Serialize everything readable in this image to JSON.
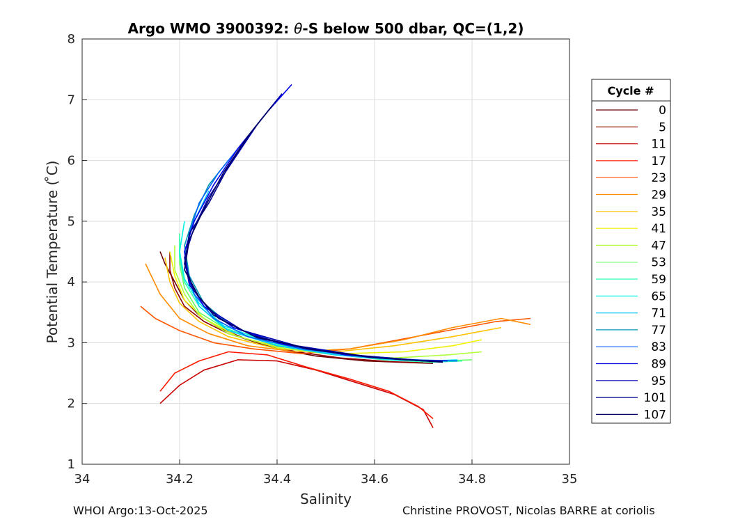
{
  "chart_data": {
    "type": "line",
    "title": "Argo WMO 3900392: θ-S below 500 dbar,  QC=(1,2)",
    "title_parts": {
      "prefix": "Argo WMO 3900392: ",
      "theta": "θ",
      "suffix": "-S below 500 dbar,  QC=(1,2)"
    },
    "xlabel": "Salinity",
    "ylabel": "Potential Temperature ( ̊C)",
    "xlim": [
      34,
      35
    ],
    "ylim": [
      1,
      8
    ],
    "xticks": [
      34,
      34.2,
      34.4,
      34.6,
      34.8,
      35
    ],
    "xtick_labels": [
      "34",
      "34.2",
      "34.4",
      "34.6",
      "34.8",
      "35"
    ],
    "yticks": [
      1,
      2,
      3,
      4,
      5,
      6,
      7,
      8
    ],
    "ytick_labels": [
      "1",
      "2",
      "3",
      "4",
      "5",
      "6",
      "7",
      "8"
    ],
    "grid": true,
    "legend": {
      "title": "Cycle #",
      "placement": "right-outside",
      "entries": [
        {
          "label": "0",
          "color": "#6b0000"
        },
        {
          "label": "5",
          "color": "#8e0000"
        },
        {
          "label": "11",
          "color": "#c80000"
        },
        {
          "label": "17",
          "color": "#ff1a00"
        },
        {
          "label": "23",
          "color": "#ff5500"
        },
        {
          "label": "29",
          "color": "#ff8c00"
        },
        {
          "label": "35",
          "color": "#ffc200"
        },
        {
          "label": "41",
          "color": "#f2f200"
        },
        {
          "label": "47",
          "color": "#b0ff3c"
        },
        {
          "label": "53",
          "color": "#66ff66"
        },
        {
          "label": "59",
          "color": "#2cffb0"
        },
        {
          "label": "65",
          "color": "#00f2e6"
        },
        {
          "label": "71",
          "color": "#00c8ff"
        },
        {
          "label": "77",
          "color": "#0096b4"
        },
        {
          "label": "83",
          "color": "#0064ff"
        },
        {
          "label": "89",
          "color": "#0000e6"
        },
        {
          "label": "95",
          "color": "#0000b4"
        },
        {
          "label": "101",
          "color": "#00008c"
        },
        {
          "label": "107",
          "color": "#000064"
        }
      ]
    },
    "series": [
      {
        "name": "0",
        "color": "#6b0000",
        "points": [
          [
            34.16,
            4.5
          ],
          [
            34.17,
            4.3
          ],
          [
            34.19,
            4.0
          ],
          [
            34.21,
            3.7
          ],
          [
            34.24,
            3.45
          ],
          [
            34.28,
            3.25
          ],
          [
            34.34,
            3.05
          ],
          [
            34.4,
            2.9
          ],
          [
            34.48,
            2.78
          ],
          [
            34.58,
            2.7
          ],
          [
            34.68,
            2.67
          ],
          [
            34.72,
            2.66
          ]
        ]
      },
      {
        "name": "5",
        "color": "#8e0000",
        "points": [
          [
            34.18,
            4.5
          ],
          [
            34.18,
            4.2
          ],
          [
            34.19,
            3.9
          ],
          [
            34.21,
            3.6
          ],
          [
            34.25,
            3.35
          ],
          [
            34.3,
            3.15
          ],
          [
            34.36,
            3.0
          ],
          [
            34.44,
            2.85
          ],
          [
            34.53,
            2.75
          ],
          [
            34.63,
            2.69
          ],
          [
            34.7,
            2.67
          ]
        ]
      },
      {
        "name": "11",
        "color": "#c80000",
        "points": [
          [
            34.16,
            2.0
          ],
          [
            34.2,
            2.3
          ],
          [
            34.25,
            2.55
          ],
          [
            34.32,
            2.72
          ],
          [
            34.4,
            2.7
          ],
          [
            34.48,
            2.55
          ],
          [
            34.56,
            2.35
          ],
          [
            34.64,
            2.15
          ],
          [
            34.7,
            1.9
          ],
          [
            34.72,
            1.6
          ]
        ]
      },
      {
        "name": "17",
        "color": "#ff1a00",
        "points": [
          [
            34.16,
            2.2
          ],
          [
            34.19,
            2.5
          ],
          [
            34.24,
            2.7
          ],
          [
            34.3,
            2.85
          ],
          [
            34.38,
            2.8
          ],
          [
            34.46,
            2.6
          ],
          [
            34.55,
            2.4
          ],
          [
            34.63,
            2.2
          ],
          [
            34.69,
            1.95
          ],
          [
            34.72,
            1.75
          ]
        ]
      },
      {
        "name": "23",
        "color": "#ff5500",
        "points": [
          [
            34.12,
            3.6
          ],
          [
            34.15,
            3.4
          ],
          [
            34.2,
            3.2
          ],
          [
            34.27,
            3.0
          ],
          [
            34.35,
            2.9
          ],
          [
            34.45,
            2.82
          ],
          [
            34.55,
            2.9
          ],
          [
            34.65,
            3.05
          ],
          [
            34.75,
            3.2
          ],
          [
            34.85,
            3.35
          ],
          [
            34.92,
            3.4
          ]
        ]
      },
      {
        "name": "29",
        "color": "#ff8c00",
        "points": [
          [
            34.13,
            4.3
          ],
          [
            34.16,
            3.8
          ],
          [
            34.2,
            3.4
          ],
          [
            34.26,
            3.15
          ],
          [
            34.34,
            2.95
          ],
          [
            34.44,
            2.85
          ],
          [
            34.55,
            2.9
          ],
          [
            34.66,
            3.05
          ],
          [
            34.76,
            3.25
          ],
          [
            34.86,
            3.4
          ],
          [
            34.92,
            3.3
          ]
        ]
      },
      {
        "name": "35",
        "color": "#ffc200",
        "points": [
          [
            34.17,
            4.4
          ],
          [
            34.18,
            4.0
          ],
          [
            34.2,
            3.65
          ],
          [
            34.24,
            3.35
          ],
          [
            34.3,
            3.1
          ],
          [
            34.4,
            2.9
          ],
          [
            34.52,
            2.85
          ],
          [
            34.64,
            2.95
          ],
          [
            34.76,
            3.1
          ],
          [
            34.86,
            3.25
          ]
        ]
      },
      {
        "name": "41",
        "color": "#f2f200",
        "points": [
          [
            34.18,
            4.5
          ],
          [
            34.19,
            4.1
          ],
          [
            34.21,
            3.7
          ],
          [
            34.25,
            3.4
          ],
          [
            34.32,
            3.1
          ],
          [
            34.42,
            2.9
          ],
          [
            34.54,
            2.82
          ],
          [
            34.66,
            2.85
          ],
          [
            34.76,
            2.95
          ],
          [
            34.82,
            3.05
          ]
        ]
      },
      {
        "name": "47",
        "color": "#b0ff3c",
        "points": [
          [
            34.19,
            4.6
          ],
          [
            34.19,
            4.2
          ],
          [
            34.21,
            3.8
          ],
          [
            34.24,
            3.45
          ],
          [
            34.3,
            3.15
          ],
          [
            34.4,
            2.92
          ],
          [
            34.52,
            2.8
          ],
          [
            34.64,
            2.75
          ],
          [
            34.75,
            2.8
          ],
          [
            34.82,
            2.85
          ]
        ]
      },
      {
        "name": "53",
        "color": "#66ff66",
        "points": [
          [
            34.2,
            4.7
          ],
          [
            34.2,
            4.3
          ],
          [
            34.21,
            3.9
          ],
          [
            34.24,
            3.5
          ],
          [
            34.3,
            3.2
          ],
          [
            34.4,
            2.95
          ],
          [
            34.52,
            2.8
          ],
          [
            34.64,
            2.72
          ],
          [
            34.74,
            2.7
          ],
          [
            34.8,
            2.72
          ]
        ]
      },
      {
        "name": "59",
        "color": "#2cffb0",
        "points": [
          [
            34.2,
            4.8
          ],
          [
            34.2,
            4.4
          ],
          [
            34.21,
            4.0
          ],
          [
            34.24,
            3.6
          ],
          [
            34.29,
            3.25
          ],
          [
            34.38,
            3.0
          ],
          [
            34.5,
            2.82
          ],
          [
            34.62,
            2.72
          ],
          [
            34.72,
            2.68
          ],
          [
            34.78,
            2.7
          ]
        ]
      },
      {
        "name": "65",
        "color": "#00f2e6",
        "points": [
          [
            34.21,
            5.0
          ],
          [
            34.2,
            4.5
          ],
          [
            34.21,
            4.05
          ],
          [
            34.24,
            3.65
          ],
          [
            34.29,
            3.28
          ],
          [
            34.38,
            3.02
          ],
          [
            34.5,
            2.84
          ],
          [
            34.62,
            2.74
          ],
          [
            34.72,
            2.7
          ],
          [
            34.77,
            2.72
          ]
        ]
      },
      {
        "name": "71",
        "color": "#00c8ff",
        "points": [
          [
            34.26,
            5.5
          ],
          [
            34.23,
            5.0
          ],
          [
            34.21,
            4.5
          ],
          [
            34.22,
            4.0
          ],
          [
            34.24,
            3.6
          ],
          [
            34.3,
            3.2
          ],
          [
            34.4,
            2.95
          ],
          [
            34.52,
            2.8
          ],
          [
            34.64,
            2.72
          ],
          [
            34.75,
            2.7
          ]
        ]
      },
      {
        "name": "77",
        "color": "#0096b4",
        "points": [
          [
            34.3,
            6.0
          ],
          [
            34.26,
            5.6
          ],
          [
            34.23,
            5.1
          ],
          [
            34.21,
            4.6
          ],
          [
            34.22,
            4.1
          ],
          [
            34.25,
            3.65
          ],
          [
            34.31,
            3.25
          ],
          [
            34.42,
            2.96
          ],
          [
            34.55,
            2.8
          ],
          [
            34.68,
            2.72
          ],
          [
            34.77,
            2.7
          ]
        ]
      },
      {
        "name": "83",
        "color": "#0064ff",
        "points": [
          [
            34.38,
            6.8
          ],
          [
            34.33,
            6.3
          ],
          [
            34.28,
            5.8
          ],
          [
            34.24,
            5.3
          ],
          [
            34.22,
            4.8
          ],
          [
            34.21,
            4.3
          ],
          [
            34.23,
            3.8
          ],
          [
            34.27,
            3.4
          ],
          [
            34.34,
            3.1
          ],
          [
            34.45,
            2.9
          ],
          [
            34.58,
            2.77
          ],
          [
            34.7,
            2.71
          ],
          [
            34.77,
            2.7
          ]
        ]
      },
      {
        "name": "89",
        "color": "#0000e6",
        "points": [
          [
            34.43,
            7.25
          ],
          [
            34.38,
            6.8
          ],
          [
            34.32,
            6.2
          ],
          [
            34.27,
            5.6
          ],
          [
            34.23,
            5.0
          ],
          [
            34.21,
            4.5
          ],
          [
            34.22,
            4.0
          ],
          [
            34.25,
            3.6
          ],
          [
            34.31,
            3.25
          ],
          [
            34.41,
            2.98
          ],
          [
            34.54,
            2.8
          ],
          [
            34.66,
            2.72
          ],
          [
            34.75,
            2.7
          ]
        ]
      },
      {
        "name": "95",
        "color": "#0000b4",
        "points": [
          [
            34.41,
            7.1
          ],
          [
            34.36,
            6.6
          ],
          [
            34.31,
            6.0
          ],
          [
            34.26,
            5.4
          ],
          [
            34.23,
            4.9
          ],
          [
            34.21,
            4.4
          ],
          [
            34.22,
            3.95
          ],
          [
            34.26,
            3.55
          ],
          [
            34.33,
            3.2
          ],
          [
            34.44,
            2.95
          ],
          [
            34.57,
            2.79
          ],
          [
            34.69,
            2.71
          ],
          [
            34.74,
            2.7
          ]
        ]
      },
      {
        "name": "101",
        "color": "#00008c",
        "points": [
          [
            34.4,
            7.0
          ],
          [
            34.35,
            6.5
          ],
          [
            34.3,
            5.9
          ],
          [
            34.26,
            5.3
          ],
          [
            34.22,
            4.8
          ],
          [
            34.21,
            4.3
          ],
          [
            34.23,
            3.85
          ],
          [
            34.27,
            3.45
          ],
          [
            34.35,
            3.12
          ],
          [
            34.46,
            2.9
          ],
          [
            34.59,
            2.76
          ],
          [
            34.7,
            2.7
          ],
          [
            34.74,
            2.69
          ]
        ]
      },
      {
        "name": "107",
        "color": "#000064",
        "points": [
          [
            34.39,
            6.9
          ],
          [
            34.34,
            6.4
          ],
          [
            34.29,
            5.8
          ],
          [
            34.25,
            5.2
          ],
          [
            34.22,
            4.7
          ],
          [
            34.21,
            4.2
          ],
          [
            34.24,
            3.75
          ],
          [
            34.28,
            3.4
          ],
          [
            34.36,
            3.08
          ],
          [
            34.48,
            2.88
          ],
          [
            34.61,
            2.75
          ],
          [
            34.72,
            2.69
          ],
          [
            34.74,
            2.68
          ]
        ]
      }
    ]
  },
  "footer": {
    "left": "WHOI Argo:13-Oct-2025",
    "right": "Christine PROVOST, Nicolas BARRE at coriolis"
  }
}
